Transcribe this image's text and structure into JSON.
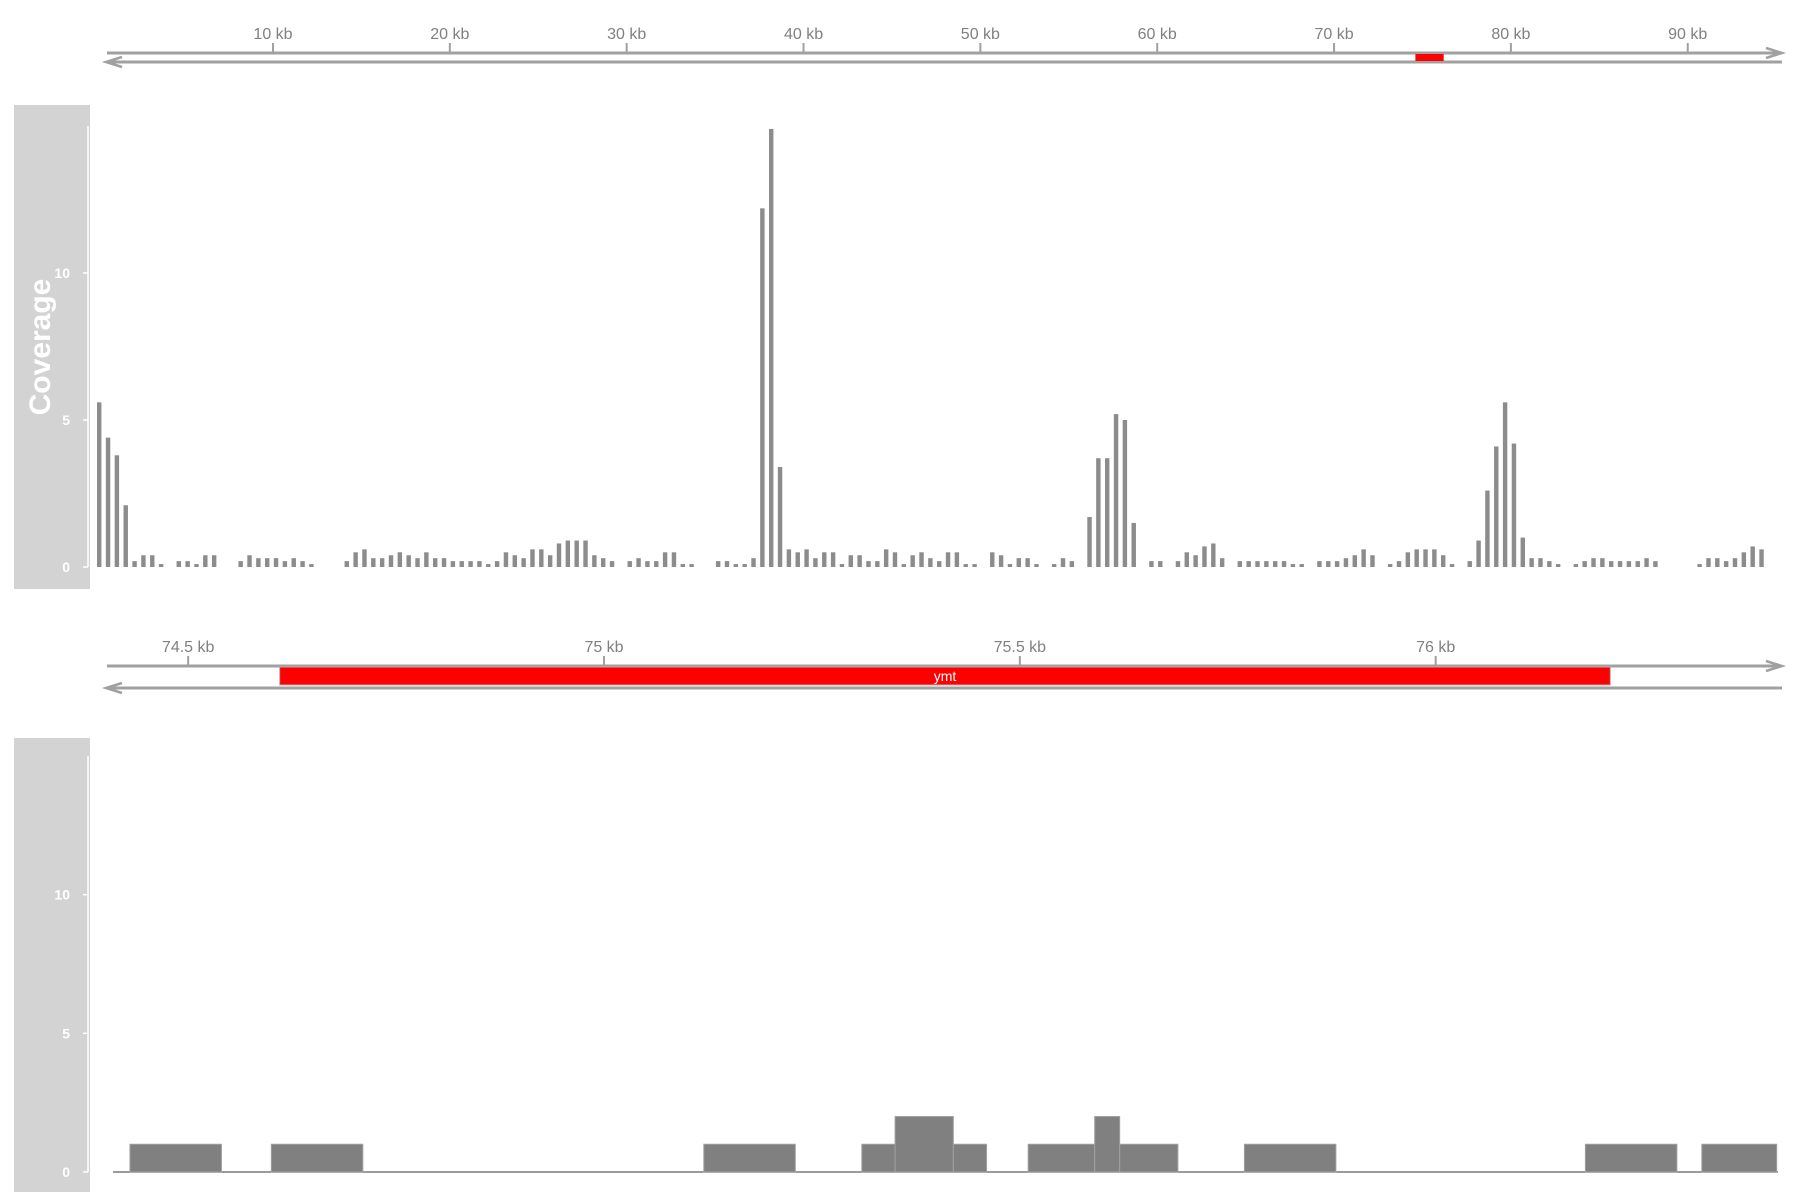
{
  "colors": {
    "axis_gray": "#a0a0a0",
    "tick_text": "#808080",
    "panel_gray": "#d3d3d3",
    "bar_gray": "#8c8c8c",
    "gene_red": "#ff0000"
  },
  "track_title": "Coverage",
  "chart_data": [
    {
      "type": "bar",
      "panel": "genome-overview",
      "title": "",
      "x_axis_ticks": [
        "10 kb",
        "20 kb",
        "30 kb",
        "40 kb",
        "50 kb",
        "60 kb",
        "70 kb",
        "80 kb",
        "90 kb"
      ],
      "x_tick_values_kb": [
        10,
        20,
        30,
        40,
        50,
        60,
        70,
        80,
        90
      ],
      "xlim_kb": [
        0.5,
        95.5
      ],
      "highlight_region_kb": [
        74.6,
        76.2
      ],
      "ylabel": "Coverage",
      "y_ticks": [
        "0",
        "5",
        "10"
      ],
      "ylim": [
        0,
        15
      ],
      "bin_width_kb": 0.5,
      "x_start_kb": 1.0,
      "values": [
        5.6,
        4.4,
        3.8,
        2.1,
        0.2,
        0.4,
        0.4,
        0.1,
        0.0,
        0.2,
        0.2,
        0.1,
        0.4,
        0.4,
        0.0,
        0.0,
        0.2,
        0.4,
        0.3,
        0.3,
        0.3,
        0.2,
        0.3,
        0.2,
        0.1,
        0.0,
        0.0,
        0.0,
        0.2,
        0.5,
        0.6,
        0.3,
        0.3,
        0.4,
        0.5,
        0.4,
        0.3,
        0.5,
        0.3,
        0.3,
        0.2,
        0.2,
        0.2,
        0.2,
        0.1,
        0.2,
        0.5,
        0.4,
        0.3,
        0.6,
        0.6,
        0.4,
        0.8,
        0.9,
        0.9,
        0.9,
        0.4,
        0.3,
        0.2,
        0.0,
        0.2,
        0.3,
        0.2,
        0.2,
        0.5,
        0.5,
        0.1,
        0.1,
        0.0,
        0.0,
        0.2,
        0.2,
        0.1,
        0.1,
        0.3,
        12.2,
        14.9,
        3.4,
        0.6,
        0.5,
        0.6,
        0.3,
        0.5,
        0.5,
        0.1,
        0.4,
        0.4,
        0.2,
        0.2,
        0.6,
        0.5,
        0.1,
        0.4,
        0.5,
        0.3,
        0.2,
        0.5,
        0.5,
        0.1,
        0.1,
        0.0,
        0.5,
        0.4,
        0.1,
        0.3,
        0.3,
        0.1,
        0.0,
        0.1,
        0.3,
        0.2,
        0.0,
        1.7,
        3.7,
        3.7,
        5.2,
        5.0,
        1.5,
        0.0,
        0.2,
        0.2,
        0.0,
        0.2,
        0.5,
        0.4,
        0.7,
        0.8,
        0.3,
        0.0,
        0.2,
        0.2,
        0.2,
        0.2,
        0.2,
        0.2,
        0.1,
        0.1,
        0.0,
        0.2,
        0.2,
        0.2,
        0.3,
        0.4,
        0.6,
        0.4,
        0.0,
        0.1,
        0.2,
        0.5,
        0.6,
        0.6,
        0.6,
        0.4,
        0.1,
        0.0,
        0.2,
        0.9,
        2.6,
        4.1,
        5.6,
        4.2,
        1.0,
        0.3,
        0.3,
        0.2,
        0.1,
        0.0,
        0.1,
        0.2,
        0.3,
        0.3,
        0.2,
        0.2,
        0.2,
        0.2,
        0.3,
        0.2,
        0.0,
        0.0,
        0.0,
        0.0,
        0.1,
        0.3,
        0.3,
        0.2,
        0.3,
        0.5,
        0.7,
        0.6
      ]
    },
    {
      "type": "area",
      "panel": "gene-zoom",
      "title": "",
      "gene": {
        "name": "ymt",
        "start_kb": 74.61,
        "end_kb": 76.21
      },
      "x_axis_ticks": [
        "74.5 kb",
        "75 kb",
        "75.5 kb",
        "76 kb"
      ],
      "x_tick_values_kb": [
        74.5,
        75.0,
        75.5,
        76.0
      ],
      "xlim_kb": [
        74.4,
        76.42
      ],
      "ylabel": "",
      "y_ticks": [
        "0",
        "5",
        "10"
      ],
      "ylim": [
        0,
        15
      ],
      "segments": [
        {
          "start_kb": 74.43,
          "end_kb": 74.54,
          "value": 1
        },
        {
          "start_kb": 74.6,
          "end_kb": 74.71,
          "value": 1
        },
        {
          "start_kb": 75.12,
          "end_kb": 75.23,
          "value": 1
        },
        {
          "start_kb": 75.31,
          "end_kb": 75.35,
          "value": 1
        },
        {
          "start_kb": 75.35,
          "end_kb": 75.42,
          "value": 2
        },
        {
          "start_kb": 75.42,
          "end_kb": 75.46,
          "value": 1
        },
        {
          "start_kb": 75.51,
          "end_kb": 75.59,
          "value": 1
        },
        {
          "start_kb": 75.59,
          "end_kb": 75.62,
          "value": 2
        },
        {
          "start_kb": 75.62,
          "end_kb": 75.69,
          "value": 1
        },
        {
          "start_kb": 75.77,
          "end_kb": 75.88,
          "value": 1
        },
        {
          "start_kb": 76.18,
          "end_kb": 76.29,
          "value": 1
        },
        {
          "start_kb": 76.32,
          "end_kb": 76.41,
          "value": 1
        }
      ]
    }
  ]
}
